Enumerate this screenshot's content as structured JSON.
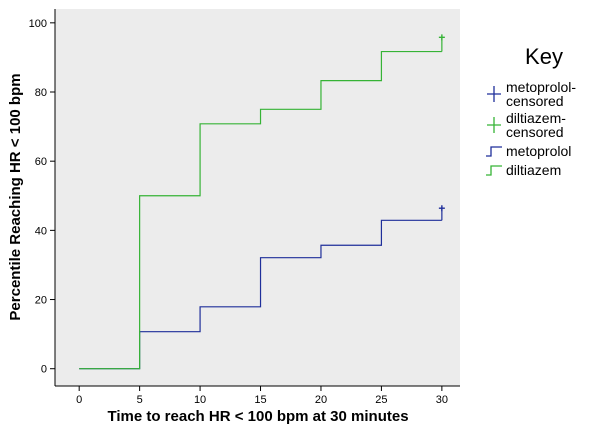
{
  "chart_data": {
    "type": "line",
    "step": true,
    "title": "",
    "xlabel": "Time to reach HR < 100 bpm at 30 minutes",
    "ylabel": "Percentile Reaching HR < 100 bpm",
    "xlim": [
      -2,
      31.5
    ],
    "ylim": [
      -5,
      104
    ],
    "xticks": [
      0,
      5,
      10,
      15,
      20,
      25,
      30
    ],
    "yticks": [
      0,
      20,
      40,
      60,
      80,
      100
    ],
    "grid": false,
    "plot_background": "#ececec",
    "legend_position": "right",
    "legend": {
      "title": "Key",
      "entries": [
        {
          "label": [
            "metoprolol-",
            "censored"
          ],
          "color": "#1f2f9a",
          "marker": "plus"
        },
        {
          "label": [
            "diltiazem-",
            "censored"
          ],
          "color": "#36b336",
          "marker": "plus"
        },
        {
          "label": [
            "metoprolol"
          ],
          "color": "#1f2f9a",
          "marker": "step"
        },
        {
          "label": [
            "diltiazem"
          ],
          "color": "#36b336",
          "marker": "step"
        }
      ]
    },
    "series": [
      {
        "name": "metoprolol",
        "color": "#1f2f9a",
        "x": [
          0,
          5,
          10,
          15,
          20,
          25,
          30
        ],
        "y": [
          0,
          10.7,
          17.9,
          32.1,
          35.7,
          42.9,
          42.9
        ],
        "censored": [
          {
            "x": 30,
            "y": 46.4
          }
        ]
      },
      {
        "name": "diltiazem",
        "color": "#36b336",
        "x": [
          0,
          5,
          10,
          15,
          20,
          25,
          30
        ],
        "y": [
          0,
          50,
          70.8,
          75,
          83.3,
          91.7,
          91.7
        ],
        "censored": [
          {
            "x": 30,
            "y": 95.8
          }
        ]
      }
    ]
  }
}
